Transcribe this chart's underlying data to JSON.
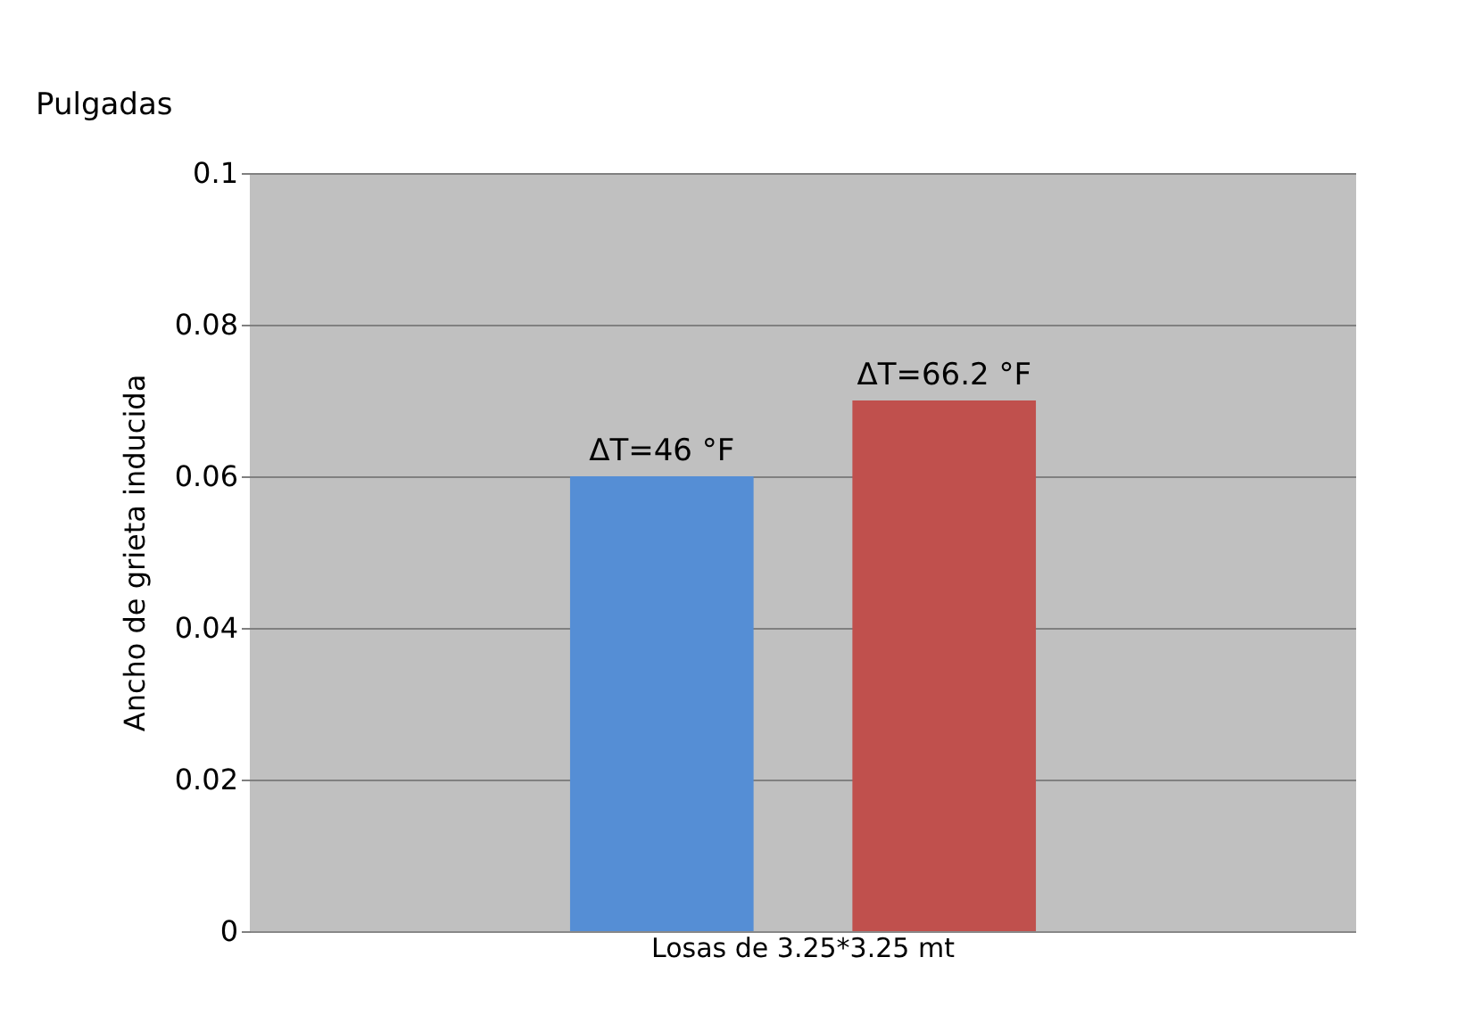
{
  "chart_data": {
    "type": "bar",
    "ylabel": "Ancho de grieta inducida",
    "annotations": [
      "Pulgadas"
    ],
    "categories": [
      "Losas de 3.25*3.25 mt"
    ],
    "series": [
      {
        "name": "ΔT=46 °F",
        "color": "#558ed5",
        "values": [
          0.06
        ]
      },
      {
        "name": "ΔT=66.2 °F",
        "color": "#c0504d",
        "values": [
          0.07
        ]
      }
    ],
    "ylim": [
      0,
      0.1
    ],
    "yticks": [
      0,
      0.02,
      0.04,
      0.06,
      0.08,
      0.1
    ],
    "grid": "y",
    "legend": false
  }
}
